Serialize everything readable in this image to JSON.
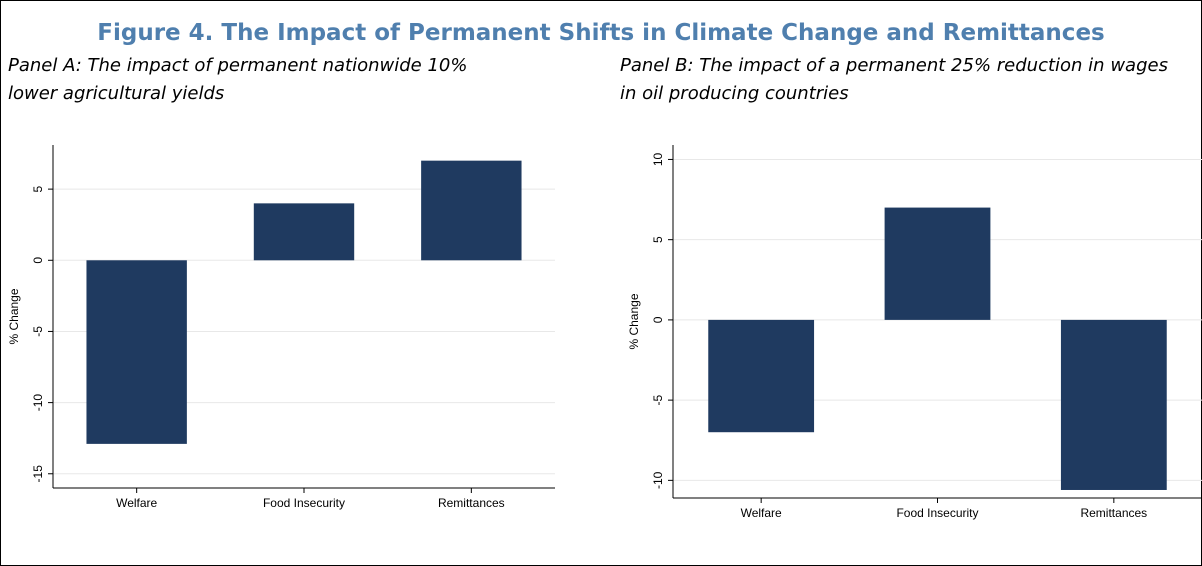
{
  "title": "Figure 4. The Impact of Permanent Shifts in Climate Change and Remittances",
  "chart_data": [
    {
      "type": "bar",
      "title": "Panel A: The impact of permanent nationwide 10% lower agricultural yields",
      "ylabel": "% Change",
      "categories": [
        "Welfare",
        "Food Insecurity",
        "Remittances"
      ],
      "values": [
        -12.9,
        4.0,
        7.0
      ],
      "color": "#1f3a60",
      "ylim": [
        -16,
        8.1
      ],
      "yticks": [
        -15,
        -10,
        -5,
        0,
        5
      ],
      "grid": true
    },
    {
      "type": "bar",
      "title": "Panel B: The impact of a permanent 25% reduction in wages in oil producing countries",
      "ylabel": "% Change",
      "categories": [
        "Welfare",
        "Food Insecurity",
        "Remittances"
      ],
      "values": [
        -7.0,
        7.0,
        -10.6
      ],
      "color": "#1f3a60",
      "ylim": [
        -11.1,
        10.9
      ],
      "yticks": [
        -10,
        -5,
        0,
        5,
        10
      ],
      "grid": true
    }
  ]
}
